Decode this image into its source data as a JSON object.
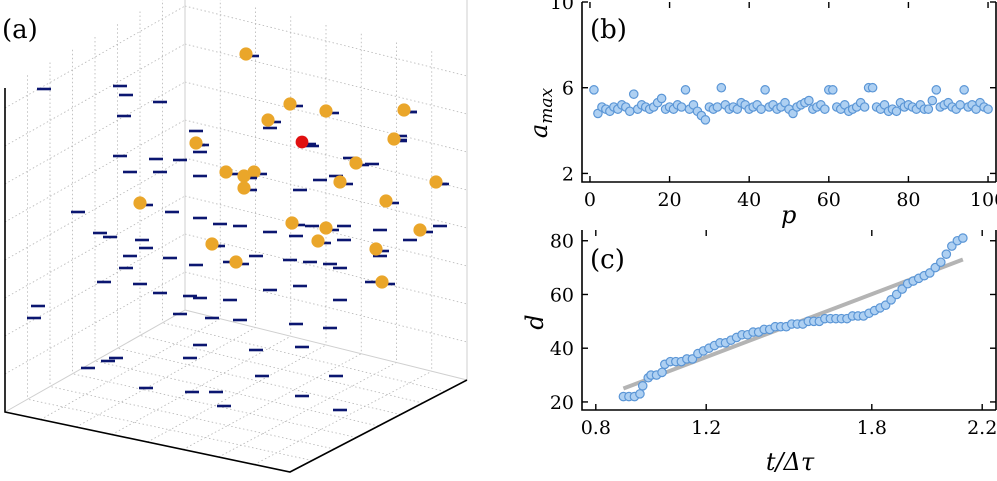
{
  "panels": {
    "a": "(a)",
    "b": "(b)",
    "c": "(c)"
  },
  "colors": {
    "dash": "#0b1670",
    "gold": "#eaa62a",
    "red": "#e01010",
    "blue_fill": "#aed0f2",
    "blue_edge": "#5b96d6",
    "fit": "#b4b4b4"
  },
  "chart_data": [
    {
      "type": "scatter",
      "panel": "(a)",
      "description_3d": true,
      "series": [
        {
          "name": "",
          "marker": "dash"
        },
        {
          "name": "",
          "marker": "gold-circle"
        },
        {
          "name": "",
          "marker": "red-circle"
        }
      ]
    },
    {
      "type": "scatter",
      "panel": "(b)",
      "xlabel": "p",
      "ylabel": "a_max",
      "xlim": [
        -2,
        102
      ],
      "ylim": [
        1.6,
        10
      ],
      "xticks": [
        0,
        20,
        40,
        60,
        80,
        100
      ],
      "yticks": [
        2,
        6,
        10
      ],
      "x": [
        1,
        2,
        3,
        4,
        5,
        6,
        7,
        8,
        9,
        10,
        11,
        12,
        13,
        14,
        15,
        16,
        17,
        18,
        19,
        20,
        21,
        22,
        23,
        24,
        25,
        26,
        27,
        28,
        29,
        30,
        31,
        32,
        33,
        34,
        35,
        36,
        37,
        38,
        39,
        40,
        41,
        42,
        43,
        44,
        45,
        46,
        47,
        48,
        49,
        50,
        51,
        52,
        53,
        54,
        55,
        56,
        57,
        58,
        59,
        60,
        61,
        62,
        63,
        64,
        65,
        66,
        67,
        68,
        69,
        70,
        71,
        72,
        73,
        74,
        75,
        76,
        77,
        78,
        79,
        80,
        81,
        82,
        83,
        84,
        85,
        86,
        87,
        88,
        89,
        90,
        91,
        92,
        93,
        94,
        95,
        96,
        97,
        98,
        99,
        100
      ],
      "y": [
        5.9,
        4.8,
        5.1,
        5.0,
        4.9,
        5.1,
        5.0,
        5.2,
        5.1,
        4.9,
        5.7,
        5.0,
        5.2,
        5.1,
        5.0,
        5.1,
        5.3,
        5.5,
        5.0,
        5.1,
        5.0,
        5.2,
        5.1,
        5.9,
        5.0,
        5.2,
        4.9,
        4.7,
        4.5,
        5.1,
        5.0,
        5.1,
        6.0,
        5.2,
        5.0,
        5.1,
        5.0,
        5.3,
        5.2,
        5.0,
        5.1,
        5.2,
        5.0,
        5.9,
        5.1,
        5.2,
        5.0,
        5.1,
        5.3,
        5.0,
        4.8,
        5.1,
        5.2,
        5.3,
        5.4,
        5.0,
        5.1,
        5.2,
        5.0,
        5.9,
        5.9,
        5.1,
        5.0,
        5.2,
        4.9,
        5.0,
        5.1,
        5.3,
        5.1,
        6.0,
        6.0,
        5.1,
        5.0,
        5.2,
        4.9,
        5.0,
        4.9,
        5.3,
        5.1,
        5.2,
        5.1,
        5.0,
        5.2,
        5.0,
        5.0,
        5.4,
        5.9,
        5.1,
        5.2,
        5.3,
        5.1,
        5.0,
        5.2,
        5.9,
        5.1,
        5.2,
        5.0,
        5.3,
        5.1,
        5.0
      ]
    },
    {
      "type": "scatter",
      "panel": "(c)",
      "xlabel": "t/Δτ",
      "ylabel": "d",
      "xlim": [
        0.75,
        2.25
      ],
      "ylim": [
        17,
        84
      ],
      "xticks": [
        0.8,
        1.2,
        1.8,
        2.2
      ],
      "xtick_labels": [
        "0.8",
        "1.2",
        "1.8",
        "2.2"
      ],
      "yticks": [
        20,
        40,
        60,
        80
      ],
      "x": [
        0.9,
        0.92,
        0.94,
        0.96,
        0.97,
        0.99,
        1.0,
        1.02,
        1.04,
        1.05,
        1.07,
        1.09,
        1.11,
        1.13,
        1.15,
        1.17,
        1.19,
        1.21,
        1.23,
        1.25,
        1.27,
        1.29,
        1.31,
        1.33,
        1.35,
        1.37,
        1.39,
        1.41,
        1.43,
        1.45,
        1.47,
        1.49,
        1.51,
        1.53,
        1.55,
        1.57,
        1.59,
        1.61,
        1.63,
        1.65,
        1.67,
        1.69,
        1.71,
        1.73,
        1.75,
        1.77,
        1.79,
        1.81,
        1.83,
        1.85,
        1.87,
        1.89,
        1.91,
        1.93,
        1.95,
        1.97,
        1.99,
        2.01,
        2.03,
        2.05,
        2.07,
        2.09,
        2.11,
        2.13
      ],
      "y": [
        22,
        22,
        22,
        23,
        26,
        29,
        30,
        30,
        31,
        34,
        35,
        35,
        35,
        36,
        36,
        38,
        39,
        40,
        41,
        42,
        42,
        43,
        44,
        45,
        45,
        46,
        46,
        47,
        47,
        48,
        48,
        48,
        49,
        49,
        49,
        50,
        50,
        50,
        51,
        51,
        51,
        51,
        51,
        52,
        52,
        52,
        53,
        54,
        55,
        56,
        58,
        60,
        62,
        64,
        65,
        66,
        67,
        68,
        70,
        72,
        75,
        78,
        80,
        81
      ],
      "fit": {
        "x": [
          0.9,
          2.13
        ],
        "y": [
          25,
          73
        ]
      }
    }
  ]
}
